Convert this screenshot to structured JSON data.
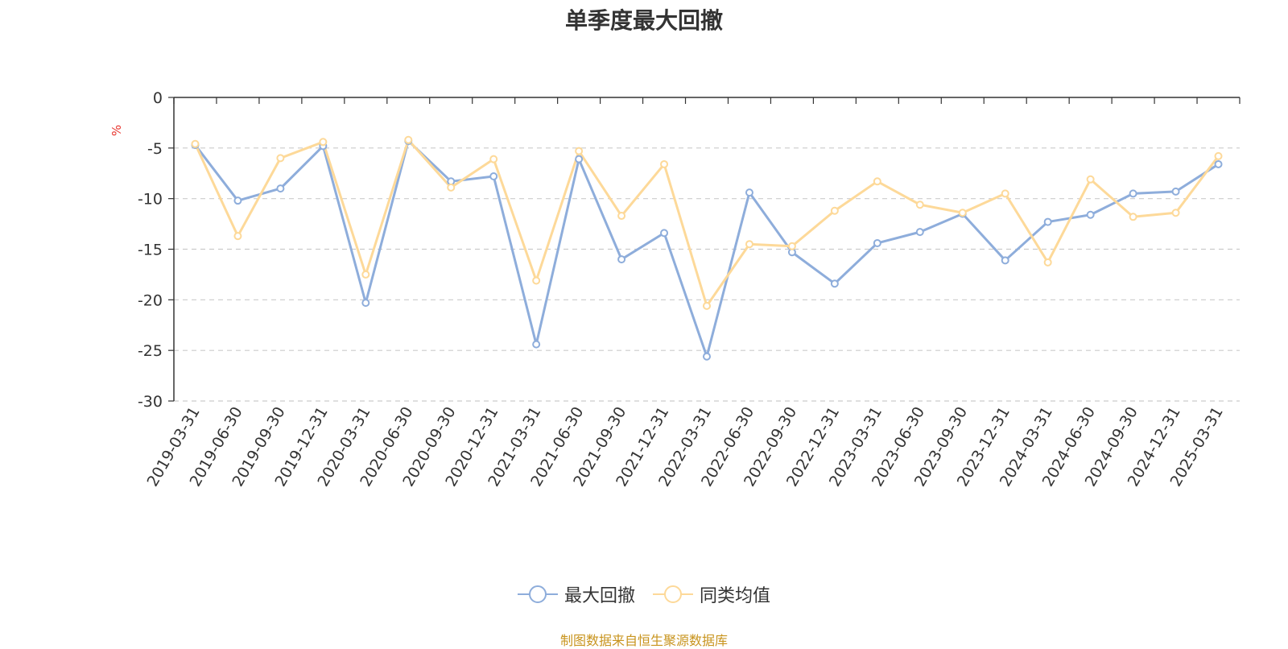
{
  "title": "单季度最大回撤",
  "source_note": "制图数据来自恒生聚源数据库",
  "colors": {
    "series1": "#8eaddb",
    "series2": "#fdd999",
    "unit": "#e8352e",
    "grid": "#cccccc",
    "axis": "#333333",
    "source": "#c8941e"
  },
  "chart_data": {
    "type": "line",
    "title": "单季度最大回撤",
    "ylabel": "%",
    "ylim": [
      -30,
      0
    ],
    "yticks": [
      0,
      -5,
      -10,
      -15,
      -20,
      -25,
      -30
    ],
    "ytick_labels": [
      "0",
      "-5",
      "-10",
      "-15",
      "-20",
      "-25",
      "-30"
    ],
    "grid": true,
    "legend_position": "bottom",
    "categories": [
      "2019-03-31",
      "2019-06-30",
      "2019-09-30",
      "2019-12-31",
      "2020-03-31",
      "2020-06-30",
      "2020-09-30",
      "2020-12-31",
      "2021-03-31",
      "2021-06-30",
      "2021-09-30",
      "2021-12-31",
      "2022-03-31",
      "2022-06-30",
      "2022-09-30",
      "2022-12-31",
      "2023-03-31",
      "2023-06-30",
      "2023-09-30",
      "2023-12-31",
      "2024-03-31",
      "2024-06-30",
      "2024-09-30",
      "2024-12-31",
      "2025-03-31"
    ],
    "series": [
      {
        "name": "最大回撤",
        "color": "#8eaddb",
        "values": [
          -4.7,
          -10.2,
          -9.0,
          -4.8,
          -20.3,
          -4.3,
          -8.3,
          -7.8,
          -24.4,
          -6.1,
          -16.0,
          -13.4,
          -25.6,
          -9.4,
          -15.3,
          -18.4,
          -14.4,
          -13.3,
          -11.5,
          -16.1,
          -12.3,
          -11.6,
          -9.5,
          -9.3,
          -6.6
        ]
      },
      {
        "name": "同类均值",
        "color": "#fdd999",
        "values": [
          -4.6,
          -13.7,
          -6.0,
          -4.4,
          -17.5,
          -4.2,
          -8.9,
          -6.1,
          -18.1,
          -5.3,
          -11.7,
          -6.6,
          -20.6,
          -14.5,
          -14.7,
          -11.2,
          -8.3,
          -10.6,
          -11.4,
          -9.5,
          -16.3,
          -8.1,
          -11.8,
          -11.4,
          -5.8
        ]
      }
    ]
  }
}
